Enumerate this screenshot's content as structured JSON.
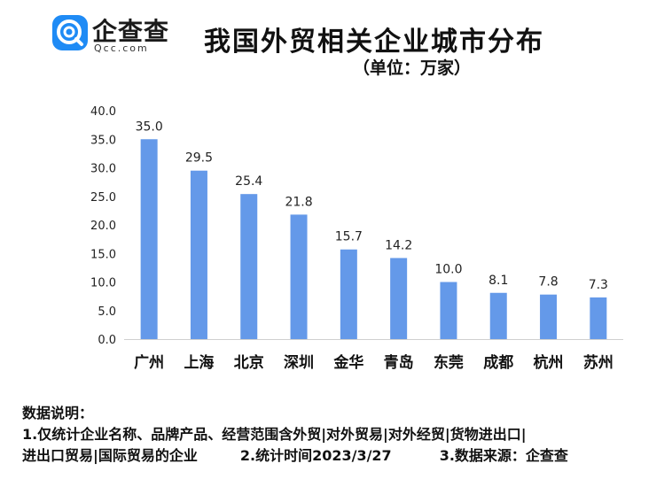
{
  "brand": {
    "name": "企查查",
    "sub": "Qcc.com",
    "icon": "qcc-logo-icon",
    "color": "#1f8bf5"
  },
  "title": "我国外贸相关企业城市分布",
  "subtitle": "（单位：万家）",
  "chart_data": {
    "type": "bar",
    "categories": [
      "广州",
      "上海",
      "北京",
      "深圳",
      "金华",
      "青岛",
      "东莞",
      "成都",
      "杭州",
      "苏州"
    ],
    "values": [
      35.0,
      29.5,
      25.4,
      21.8,
      15.7,
      14.2,
      10.0,
      8.1,
      7.8,
      7.3
    ],
    "value_labels": [
      "35.0",
      "29.5",
      "25.4",
      "21.8",
      "15.7",
      "14.2",
      "10.0",
      "8.1",
      "7.8",
      "7.3"
    ],
    "ylim": [
      0,
      40
    ],
    "yticks": [
      "0.0",
      "5.0",
      "10.0",
      "15.0",
      "20.0",
      "25.0",
      "30.0",
      "35.0",
      "40.0"
    ],
    "ytick_values": [
      0,
      5,
      10,
      15,
      20,
      25,
      30,
      35,
      40
    ],
    "grid": false,
    "bar_color": "#6499e9"
  },
  "notes": {
    "heading": "数据说明：",
    "line1": "1.仅统计企业名称、品牌产品、经营范围含外贸|对外贸易|对外经贸|货物进出口|",
    "line2a": "进出口贸易|国际贸易的企业",
    "line2b": "2.统计时间2023/3/27",
    "line2c": "3.数据来源：企查查"
  }
}
